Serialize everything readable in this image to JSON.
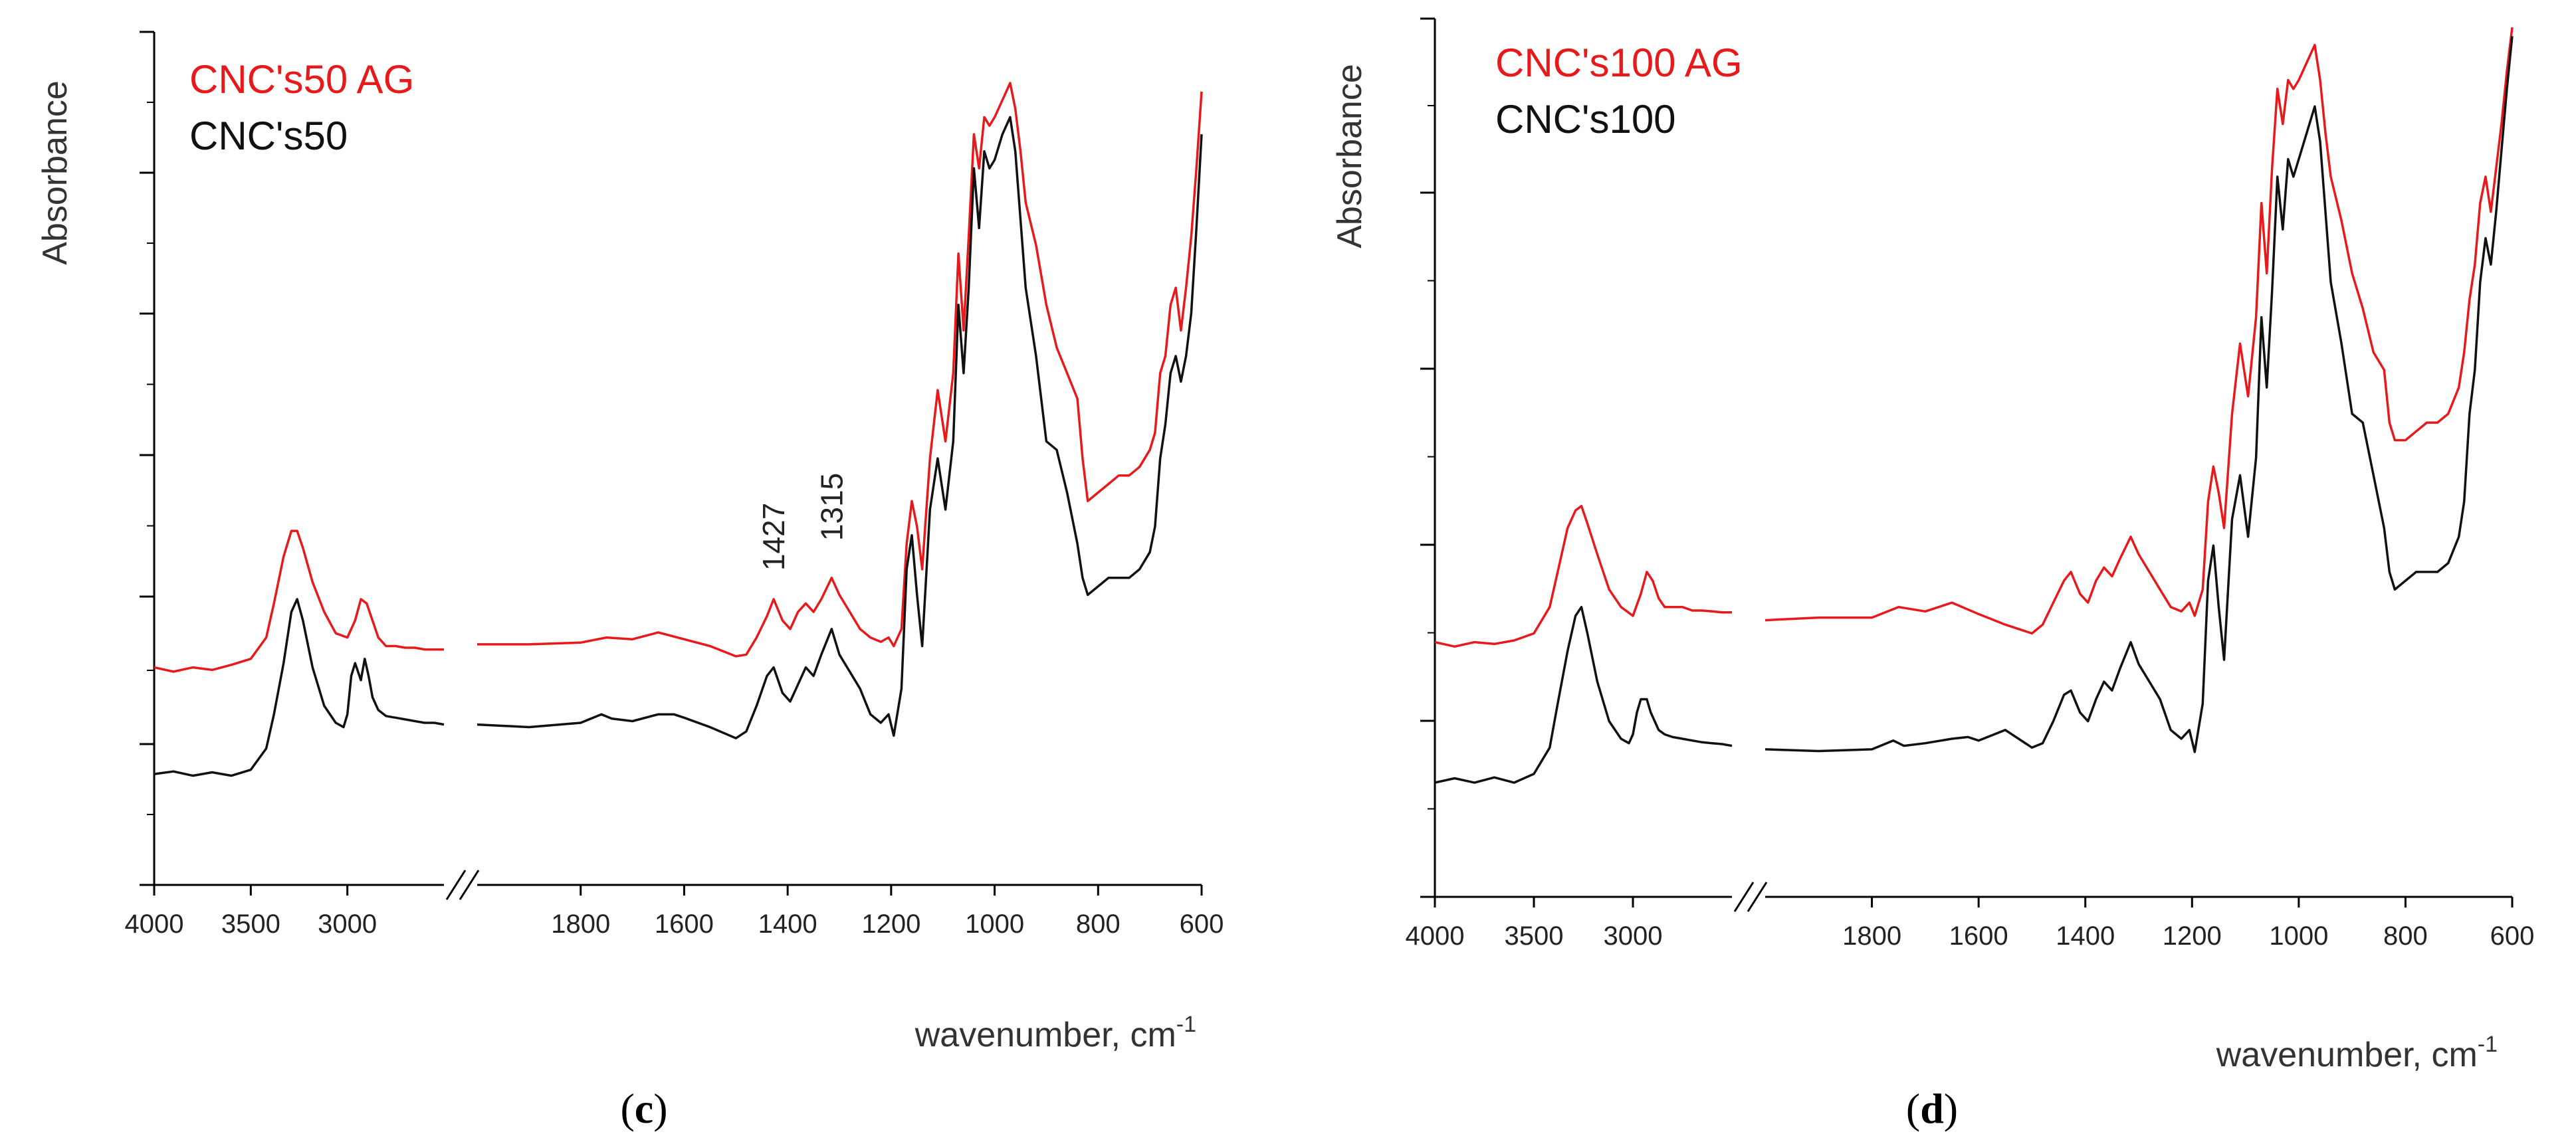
{
  "chart_data": [
    {
      "type": "line",
      "panel_label": "c",
      "ylabel": "Absorbance",
      "xlabel": "wavenumber, cm",
      "xlabel_sup": "-1",
      "axis_break": true,
      "segment_left": {
        "xlim": [
          4000,
          2500
        ],
        "ticks": [
          4000,
          3500,
          3000
        ]
      },
      "segment_right": {
        "xlim": [
          2000,
          600
        ],
        "ticks": [
          1800,
          1600,
          1400,
          1200,
          1000,
          800,
          600
        ]
      },
      "ylim": [
        0,
        1
      ],
      "tick_labels": [
        "4000",
        "3500",
        "3000",
        "1800",
        "1600",
        "1400",
        "1200",
        "1000",
        "800",
        "600"
      ],
      "annotations": [
        {
          "text": "1427",
          "x": 1427,
          "y": 0.345
        },
        {
          "text": "1315",
          "x": 1315,
          "y": 0.38
        }
      ],
      "series": [
        {
          "name": "CNC's50 AG",
          "color": "#e8191a",
          "left": {
            "x": [
              4000,
              3900,
              3800,
              3700,
              3600,
              3500,
              3420,
              3380,
              3330,
              3290,
              3260,
              3230,
              3180,
              3120,
              3060,
              3000,
              2960,
              2930,
              2900,
              2870,
              2840,
              2800,
              2750,
              2700,
              2650,
              2600,
              2550,
              2500
            ],
            "y": [
              0.255,
              0.25,
              0.255,
              0.252,
              0.258,
              0.265,
              0.29,
              0.33,
              0.385,
              0.415,
              0.415,
              0.395,
              0.355,
              0.32,
              0.295,
              0.29,
              0.31,
              0.335,
              0.33,
              0.31,
              0.29,
              0.28,
              0.28,
              0.278,
              0.278,
              0.276,
              0.276,
              0.276
            ]
          },
          "right": {
            "x": [
              2000,
              1900,
              1800,
              1750,
              1700,
              1650,
              1600,
              1550,
              1500,
              1480,
              1460,
              1440,
              1427,
              1410,
              1395,
              1380,
              1365,
              1350,
              1335,
              1315,
              1300,
              1280,
              1260,
              1240,
              1220,
              1205,
              1195,
              1180,
              1170,
              1160,
              1150,
              1140,
              1125,
              1110,
              1095,
              1080,
              1070,
              1060,
              1050,
              1040,
              1030,
              1020,
              1010,
              1000,
              985,
              970,
              960,
              950,
              940,
              920,
              900,
              880,
              860,
              840,
              830,
              820,
              800,
              780,
              760,
              740,
              720,
              700,
              690,
              680,
              670,
              660,
              650,
              640,
              630,
              620,
              610,
              600
            ],
            "y": [
              0.282,
              0.282,
              0.284,
              0.29,
              0.288,
              0.296,
              0.288,
              0.28,
              0.268,
              0.27,
              0.29,
              0.315,
              0.335,
              0.31,
              0.3,
              0.32,
              0.33,
              0.32,
              0.335,
              0.36,
              0.34,
              0.32,
              0.3,
              0.29,
              0.285,
              0.29,
              0.28,
              0.3,
              0.4,
              0.45,
              0.42,
              0.37,
              0.5,
              0.58,
              0.52,
              0.6,
              0.74,
              0.65,
              0.76,
              0.88,
              0.84,
              0.9,
              0.89,
              0.9,
              0.92,
              0.94,
              0.91,
              0.86,
              0.8,
              0.75,
              0.68,
              0.63,
              0.6,
              0.57,
              0.5,
              0.45,
              0.46,
              0.47,
              0.48,
              0.48,
              0.49,
              0.51,
              0.53,
              0.6,
              0.62,
              0.68,
              0.7,
              0.65,
              0.7,
              0.76,
              0.84,
              0.93
            ]
          }
        },
        {
          "name": "CNC's50",
          "color": "#111111",
          "left": {
            "x": [
              4000,
              3900,
              3800,
              3700,
              3600,
              3500,
              3420,
              3380,
              3330,
              3290,
              3260,
              3230,
              3180,
              3120,
              3060,
              3020,
              3000,
              2980,
              2960,
              2930,
              2910,
              2890,
              2870,
              2840,
              2800,
              2750,
              2700,
              2650,
              2600,
              2550,
              2500
            ],
            "y": [
              0.13,
              0.133,
              0.128,
              0.132,
              0.128,
              0.135,
              0.16,
              0.2,
              0.26,
              0.32,
              0.335,
              0.31,
              0.255,
              0.21,
              0.19,
              0.185,
              0.2,
              0.245,
              0.26,
              0.24,
              0.265,
              0.245,
              0.22,
              0.205,
              0.198,
              0.196,
              0.194,
              0.192,
              0.19,
              0.19,
              0.188
            ]
          },
          "right": {
            "x": [
              2000,
              1900,
              1800,
              1760,
              1740,
              1700,
              1650,
              1620,
              1600,
              1550,
              1500,
              1480,
              1460,
              1440,
              1427,
              1410,
              1395,
              1380,
              1365,
              1350,
              1335,
              1315,
              1300,
              1280,
              1260,
              1240,
              1220,
              1205,
              1195,
              1180,
              1170,
              1160,
              1150,
              1140,
              1125,
              1110,
              1095,
              1080,
              1070,
              1060,
              1050,
              1040,
              1030,
              1020,
              1010,
              1000,
              985,
              970,
              960,
              950,
              940,
              920,
              900,
              880,
              860,
              840,
              830,
              820,
              800,
              780,
              760,
              740,
              720,
              700,
              690,
              680,
              670,
              660,
              650,
              640,
              630,
              620,
              610,
              600
            ],
            "y": [
              0.188,
              0.185,
              0.19,
              0.2,
              0.195,
              0.192,
              0.2,
              0.2,
              0.196,
              0.185,
              0.172,
              0.18,
              0.21,
              0.245,
              0.255,
              0.225,
              0.215,
              0.235,
              0.255,
              0.245,
              0.27,
              0.3,
              0.27,
              0.25,
              0.23,
              0.2,
              0.19,
              0.2,
              0.175,
              0.23,
              0.37,
              0.41,
              0.34,
              0.28,
              0.44,
              0.5,
              0.44,
              0.52,
              0.68,
              0.6,
              0.7,
              0.84,
              0.77,
              0.86,
              0.84,
              0.85,
              0.88,
              0.9,
              0.86,
              0.78,
              0.7,
              0.62,
              0.52,
              0.51,
              0.46,
              0.4,
              0.36,
              0.34,
              0.35,
              0.36,
              0.36,
              0.36,
              0.37,
              0.39,
              0.42,
              0.5,
              0.54,
              0.6,
              0.62,
              0.59,
              0.62,
              0.67,
              0.77,
              0.88
            ]
          }
        }
      ]
    },
    {
      "type": "line",
      "panel_label": "d",
      "ylabel": "Absorbance",
      "xlabel": "wavenumber, cm",
      "xlabel_sup": "-1",
      "axis_break": true,
      "segment_left": {
        "xlim": [
          4000,
          2500
        ],
        "ticks": [
          4000,
          3500,
          3000
        ]
      },
      "segment_right": {
        "xlim": [
          2000,
          600
        ],
        "ticks": [
          1800,
          1600,
          1400,
          1200,
          1000,
          800,
          600
        ]
      },
      "ylim": [
        0,
        1
      ],
      "tick_labels": [
        "4000",
        "3500",
        "3000",
        "1800",
        "1600",
        "1400",
        "1200",
        "1000",
        "800",
        "600"
      ],
      "annotations": [],
      "series": [
        {
          "name": "CNC's100 AG",
          "color": "#e8191a",
          "left": {
            "x": [
              4000,
              3900,
              3800,
              3700,
              3600,
              3500,
              3420,
              3380,
              3330,
              3290,
              3260,
              3230,
              3180,
              3120,
              3060,
              3000,
              2960,
              2930,
              2900,
              2870,
              2840,
              2800,
              2750,
              2700,
              2650,
              2600,
              2550,
              2500
            ],
            "y": [
              0.29,
              0.285,
              0.29,
              0.288,
              0.292,
              0.3,
              0.33,
              0.37,
              0.42,
              0.44,
              0.445,
              0.425,
              0.39,
              0.35,
              0.33,
              0.32,
              0.345,
              0.37,
              0.36,
              0.34,
              0.33,
              0.33,
              0.33,
              0.326,
              0.326,
              0.325,
              0.324,
              0.324
            ]
          },
          "right": {
            "x": [
              2000,
              1900,
              1800,
              1750,
              1700,
              1650,
              1600,
              1550,
              1500,
              1480,
              1460,
              1440,
              1427,
              1410,
              1395,
              1380,
              1365,
              1350,
              1335,
              1315,
              1300,
              1280,
              1260,
              1240,
              1220,
              1205,
              1195,
              1180,
              1170,
              1160,
              1150,
              1140,
              1125,
              1110,
              1095,
              1080,
              1070,
              1060,
              1050,
              1040,
              1030,
              1020,
              1010,
              1000,
              985,
              970,
              960,
              950,
              940,
              920,
              900,
              880,
              860,
              840,
              830,
              820,
              800,
              780,
              760,
              740,
              720,
              700,
              690,
              680,
              670,
              660,
              650,
              640,
              630,
              620,
              610,
              600
            ],
            "y": [
              0.315,
              0.318,
              0.318,
              0.33,
              0.325,
              0.335,
              0.322,
              0.31,
              0.3,
              0.31,
              0.335,
              0.36,
              0.37,
              0.345,
              0.335,
              0.36,
              0.375,
              0.365,
              0.385,
              0.41,
              0.39,
              0.37,
              0.35,
              0.33,
              0.325,
              0.335,
              0.32,
              0.35,
              0.45,
              0.49,
              0.46,
              0.42,
              0.55,
              0.63,
              0.57,
              0.66,
              0.79,
              0.71,
              0.83,
              0.92,
              0.88,
              0.93,
              0.92,
              0.93,
              0.95,
              0.97,
              0.93,
              0.87,
              0.82,
              0.77,
              0.71,
              0.67,
              0.62,
              0.6,
              0.54,
              0.52,
              0.52,
              0.53,
              0.54,
              0.54,
              0.55,
              0.58,
              0.62,
              0.68,
              0.72,
              0.79,
              0.82,
              0.78,
              0.83,
              0.88,
              0.94,
              0.99
            ]
          }
        },
        {
          "name": "CNC's100",
          "color": "#111111",
          "left": {
            "x": [
              4000,
              3900,
              3800,
              3700,
              3600,
              3500,
              3420,
              3380,
              3330,
              3290,
              3260,
              3230,
              3180,
              3120,
              3060,
              3020,
              3000,
              2980,
              2960,
              2930,
              2910,
              2890,
              2870,
              2840,
              2800,
              2750,
              2700,
              2650,
              2600,
              2550,
              2500
            ],
            "y": [
              0.13,
              0.135,
              0.13,
              0.136,
              0.13,
              0.14,
              0.17,
              0.22,
              0.28,
              0.32,
              0.33,
              0.3,
              0.245,
              0.2,
              0.18,
              0.175,
              0.185,
              0.21,
              0.225,
              0.225,
              0.21,
              0.2,
              0.19,
              0.185,
              0.182,
              0.18,
              0.178,
              0.176,
              0.175,
              0.174,
              0.172
            ]
          },
          "right": {
            "x": [
              2000,
              1900,
              1800,
              1760,
              1740,
              1700,
              1650,
              1620,
              1600,
              1550,
              1500,
              1480,
              1460,
              1440,
              1427,
              1410,
              1395,
              1380,
              1365,
              1350,
              1335,
              1315,
              1300,
              1280,
              1260,
              1240,
              1220,
              1205,
              1195,
              1180,
              1170,
              1160,
              1150,
              1140,
              1125,
              1110,
              1095,
              1080,
              1070,
              1060,
              1050,
              1040,
              1030,
              1020,
              1010,
              1000,
              985,
              970,
              960,
              950,
              940,
              920,
              900,
              880,
              860,
              840,
              830,
              820,
              800,
              780,
              760,
              740,
              720,
              700,
              690,
              680,
              670,
              660,
              650,
              640,
              630,
              620,
              610,
              600
            ],
            "y": [
              0.168,
              0.166,
              0.168,
              0.178,
              0.172,
              0.175,
              0.18,
              0.182,
              0.178,
              0.19,
              0.17,
              0.175,
              0.2,
              0.23,
              0.235,
              0.21,
              0.2,
              0.225,
              0.245,
              0.235,
              0.26,
              0.29,
              0.265,
              0.245,
              0.225,
              0.19,
              0.18,
              0.19,
              0.165,
              0.22,
              0.36,
              0.4,
              0.33,
              0.27,
              0.43,
              0.48,
              0.41,
              0.5,
              0.66,
              0.58,
              0.69,
              0.82,
              0.76,
              0.84,
              0.82,
              0.84,
              0.87,
              0.9,
              0.86,
              0.78,
              0.7,
              0.63,
              0.55,
              0.54,
              0.48,
              0.42,
              0.37,
              0.35,
              0.36,
              0.37,
              0.37,
              0.37,
              0.38,
              0.41,
              0.45,
              0.55,
              0.6,
              0.7,
              0.75,
              0.72,
              0.78,
              0.85,
              0.92,
              0.98
            ]
          }
        }
      ]
    }
  ]
}
